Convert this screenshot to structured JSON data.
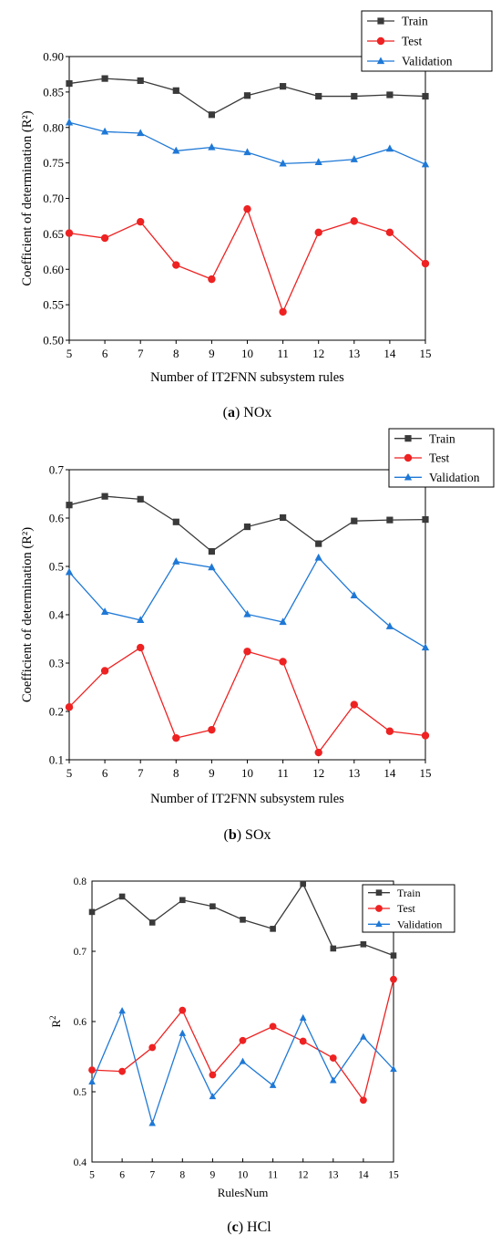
{
  "figure": {
    "colors": {
      "train": "#3a3a3a",
      "test": "#ee2222",
      "validation": "#1e78d6",
      "axis": "#000000"
    }
  },
  "chart_data": [
    {
      "id": "nox",
      "type": "line",
      "caption_letter": "a",
      "caption_text": "NOx",
      "xlabel": "Number of IT2FNN subsystem rules",
      "ylabel": "Coefficient of determination (R²)",
      "xlim": [
        5,
        15
      ],
      "ylim": [
        0.5,
        0.9
      ],
      "x": [
        5,
        6,
        7,
        8,
        9,
        10,
        11,
        12,
        13,
        14,
        15
      ],
      "x_ticks": [
        "5",
        "6",
        "7",
        "8",
        "9",
        "10",
        "11",
        "12",
        "13",
        "14",
        "15"
      ],
      "y_ticks": [
        {
          "v": 0.5,
          "label": "0.50"
        },
        {
          "v": 0.55,
          "label": "0.55"
        },
        {
          "v": 0.6,
          "label": "0.60"
        },
        {
          "v": 0.65,
          "label": "0.65"
        },
        {
          "v": 0.7,
          "label": "0.70"
        },
        {
          "v": 0.75,
          "label": "0.75"
        },
        {
          "v": 0.8,
          "label": "0.80"
        },
        {
          "v": 0.85,
          "label": "0.85"
        },
        {
          "v": 0.9,
          "label": "0.90"
        }
      ],
      "legend_position": "top-right, above plot",
      "series": [
        {
          "name": "Train",
          "key": "train",
          "marker": "square",
          "values": [
            0.862,
            0.869,
            0.866,
            0.852,
            0.818,
            0.845,
            0.858,
            0.844,
            0.844,
            0.846,
            0.844
          ]
        },
        {
          "name": "Test",
          "key": "test",
          "marker": "circle",
          "values": [
            0.651,
            0.644,
            0.667,
            0.606,
            0.586,
            0.685,
            0.54,
            0.652,
            0.668,
            0.652,
            0.608
          ]
        },
        {
          "name": "Validation",
          "key": "validation",
          "marker": "triangle",
          "values": [
            0.807,
            0.794,
            0.792,
            0.767,
            0.772,
            0.765,
            0.749,
            0.751,
            0.755,
            0.77,
            0.748
          ]
        }
      ]
    },
    {
      "id": "sox",
      "type": "line",
      "caption_letter": "b",
      "caption_text": "SOx",
      "xlabel": "Number of IT2FNN subsystem rules",
      "ylabel": "Coefficient of determination (R²)",
      "xlim": [
        5,
        15
      ],
      "ylim": [
        0.1,
        0.7
      ],
      "x": [
        5,
        6,
        7,
        8,
        9,
        10,
        11,
        12,
        13,
        14,
        15
      ],
      "x_ticks": [
        "5",
        "6",
        "7",
        "8",
        "9",
        "10",
        "11",
        "12",
        "13",
        "14",
        "15"
      ],
      "y_ticks": [
        {
          "v": 0.1,
          "label": "0.1"
        },
        {
          "v": 0.2,
          "label": "0.2"
        },
        {
          "v": 0.3,
          "label": "0.3"
        },
        {
          "v": 0.4,
          "label": "0.4"
        },
        {
          "v": 0.5,
          "label": "0.5"
        },
        {
          "v": 0.6,
          "label": "0.6"
        },
        {
          "v": 0.7,
          "label": "0.7"
        }
      ],
      "legend_position": "top-right, above plot",
      "series": [
        {
          "name": "Train",
          "key": "train",
          "marker": "square",
          "values": [
            0.627,
            0.645,
            0.639,
            0.592,
            0.531,
            0.582,
            0.601,
            0.547,
            0.594,
            0.596,
            0.597
          ]
        },
        {
          "name": "Test",
          "key": "test",
          "marker": "circle",
          "values": [
            0.209,
            0.284,
            0.332,
            0.145,
            0.162,
            0.324,
            0.303,
            0.115,
            0.214,
            0.159,
            0.15
          ]
        },
        {
          "name": "Validation",
          "key": "validation",
          "marker": "triangle",
          "values": [
            0.488,
            0.406,
            0.389,
            0.51,
            0.498,
            0.401,
            0.385,
            0.518,
            0.44,
            0.376,
            0.332
          ]
        }
      ]
    },
    {
      "id": "hcl",
      "type": "line",
      "caption_letter": "c",
      "caption_text": "HCl",
      "xlabel": "RulesNum",
      "ylabel": "R",
      "ylabel_sup": "2",
      "xlim": [
        5,
        15
      ],
      "ylim": [
        0.4,
        0.8
      ],
      "x": [
        5,
        6,
        7,
        8,
        9,
        10,
        11,
        12,
        13,
        14,
        15
      ],
      "x_ticks": [
        "5",
        "6",
        "7",
        "8",
        "9",
        "10",
        "11",
        "12",
        "13",
        "14",
        "15"
      ],
      "y_ticks": [
        {
          "v": 0.4,
          "label": "0.4"
        },
        {
          "v": 0.5,
          "label": "0.5"
        },
        {
          "v": 0.6,
          "label": "0.6"
        },
        {
          "v": 0.7,
          "label": "0.7"
        },
        {
          "v": 0.8,
          "label": "0.8"
        }
      ],
      "legend_position": "top-right, inside plot",
      "series": [
        {
          "name": "Train",
          "key": "train",
          "marker": "square",
          "values": [
            0.756,
            0.778,
            0.741,
            0.773,
            0.764,
            0.745,
            0.732,
            0.796,
            0.704,
            0.71,
            0.694
          ]
        },
        {
          "name": "Test",
          "key": "test",
          "marker": "circle",
          "values": [
            0.531,
            0.529,
            0.563,
            0.616,
            0.524,
            0.573,
            0.593,
            0.572,
            0.548,
            0.488,
            0.66
          ]
        },
        {
          "name": "Validation",
          "key": "validation",
          "marker": "triangle",
          "values": [
            0.514,
            0.615,
            0.455,
            0.583,
            0.493,
            0.543,
            0.509,
            0.605,
            0.516,
            0.578,
            0.532
          ]
        }
      ]
    }
  ]
}
